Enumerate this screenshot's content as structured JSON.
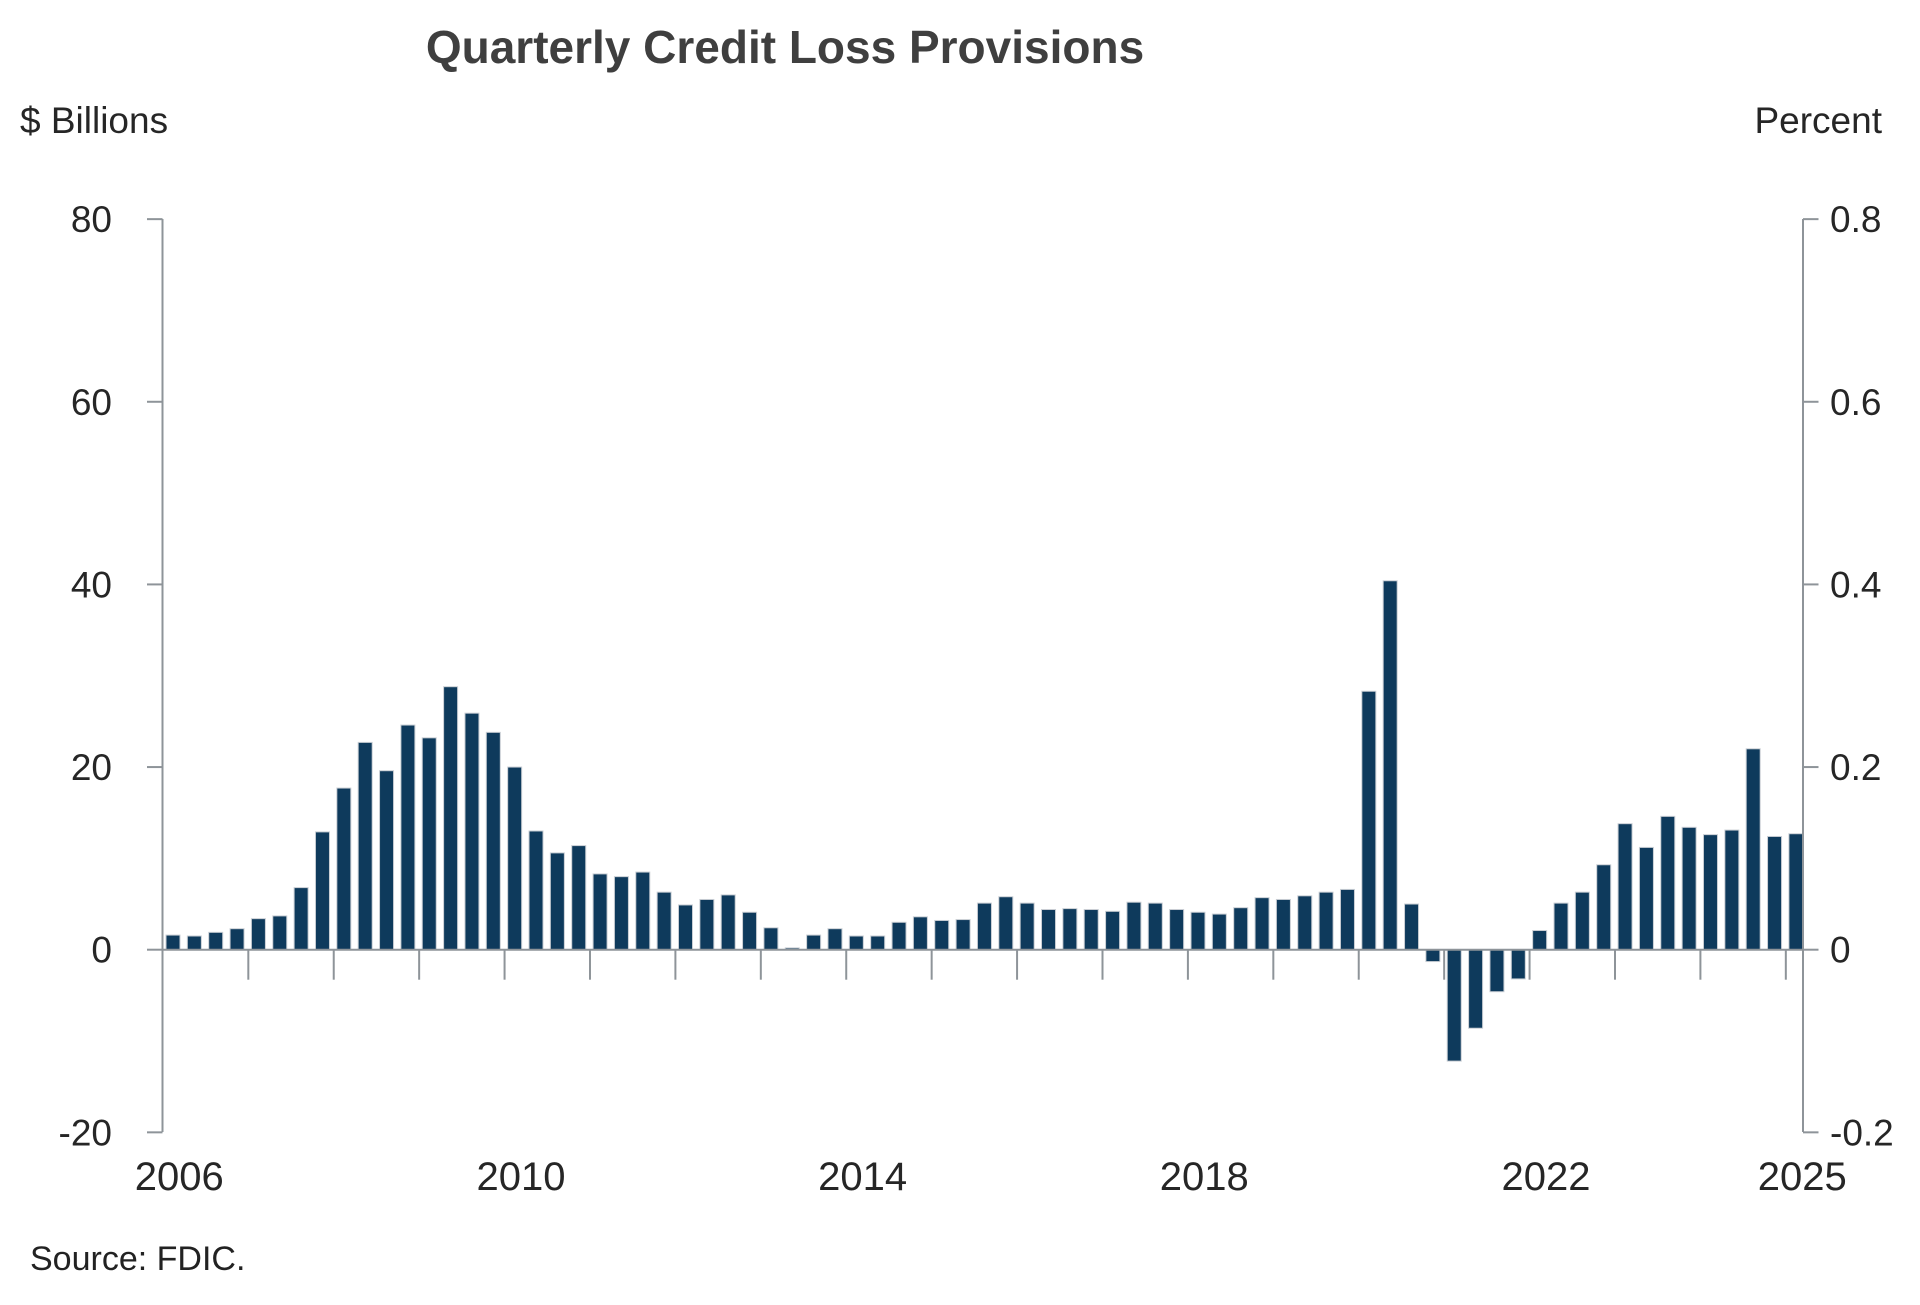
{
  "title": "Quarterly Credit Loss Provisions",
  "source": "Source: FDIC.",
  "left_axis": {
    "unit": "$ Billions",
    "tick_labels": [
      "80",
      "60",
      "40",
      "20",
      "0",
      "-20"
    ],
    "tick_values": [
      80,
      60,
      40,
      20,
      0,
      -20
    ]
  },
  "right_axis": {
    "unit": "Percent",
    "tick_labels": [
      "0.8",
      "0.6",
      "0.4",
      "0.2",
      "0",
      "-0.2"
    ],
    "tick_values": [
      0.8,
      0.6,
      0.4,
      0.2,
      0,
      -0.2
    ]
  },
  "x_axis": {
    "year_labels": [
      2006,
      2010,
      2014,
      2018,
      2022,
      2025
    ],
    "tick_years": [
      2007,
      2008,
      2009,
      2010,
      2011,
      2012,
      2013,
      2014,
      2015,
      2016,
      2017,
      2018,
      2019,
      2020,
      2021,
      2022,
      2023,
      2024,
      2025
    ]
  },
  "colors": {
    "bar_fill": "#0E3A5C",
    "bar_edge": "#C9CED4",
    "axis_line": "#8E9499",
    "text": "#262626",
    "title_text": "#3F3F3F"
  },
  "chart_data": {
    "type": "bar",
    "title": "Quarterly Credit Loss Provisions",
    "xlabel": "",
    "ylabel_left": "$ Billions",
    "ylabel_right": "Percent",
    "ylim_left": [
      -20,
      80
    ],
    "ylim_right": [
      -0.2,
      0.8
    ],
    "x_range": [
      "2006Q1",
      "2025Q1"
    ],
    "grid": false,
    "legend": "none",
    "note": "Right percent axis is aligned so 0.8 Percent corresponds to 80 $Billions",
    "categories": [
      "2006Q1",
      "2006Q2",
      "2006Q3",
      "2006Q4",
      "2007Q1",
      "2007Q2",
      "2007Q3",
      "2007Q4",
      "2008Q1",
      "2008Q2",
      "2008Q3",
      "2008Q4",
      "2009Q1",
      "2009Q2",
      "2009Q3",
      "2009Q4",
      "2010Q1",
      "2010Q2",
      "2010Q3",
      "2010Q4",
      "2011Q1",
      "2011Q2",
      "2011Q3",
      "2011Q4",
      "2012Q1",
      "2012Q2",
      "2012Q3",
      "2012Q4",
      "2013Q1",
      "2013Q2",
      "2013Q3",
      "2013Q4",
      "2014Q1",
      "2014Q2",
      "2014Q3",
      "2014Q4",
      "2015Q1",
      "2015Q2",
      "2015Q3",
      "2015Q4",
      "2016Q1",
      "2016Q2",
      "2016Q3",
      "2016Q4",
      "2017Q1",
      "2017Q2",
      "2017Q3",
      "2017Q4",
      "2018Q1",
      "2018Q2",
      "2018Q3",
      "2018Q4",
      "2019Q1",
      "2019Q2",
      "2019Q3",
      "2019Q4",
      "2020Q1",
      "2020Q2",
      "2020Q3",
      "2020Q4",
      "2021Q1",
      "2021Q2",
      "2021Q3",
      "2021Q4",
      "2022Q1",
      "2022Q2",
      "2022Q3",
      "2022Q4",
      "2023Q1",
      "2023Q2",
      "2023Q3",
      "2023Q4",
      "2024Q1",
      "2024Q2",
      "2024Q3",
      "2024Q4",
      "2025Q1"
    ],
    "values": [
      1.6,
      1.5,
      1.9,
      2.3,
      3.4,
      3.7,
      6.8,
      12.9,
      17.7,
      22.7,
      19.6,
      24.6,
      23.2,
      28.8,
      25.9,
      23.8,
      20.0,
      13.0,
      10.6,
      11.4,
      8.3,
      8.0,
      8.5,
      6.3,
      4.9,
      5.5,
      6.0,
      4.1,
      2.4,
      0.2,
      1.6,
      2.3,
      1.5,
      1.5,
      3.0,
      3.6,
      3.2,
      3.3,
      5.1,
      5.8,
      5.1,
      4.4,
      4.5,
      4.4,
      4.2,
      5.2,
      5.1,
      4.4,
      4.1,
      3.9,
      4.6,
      5.7,
      5.5,
      5.9,
      6.3,
      6.6,
      28.3,
      40.4,
      5.0,
      -1.3,
      -12.2,
      -8.6,
      -4.6,
      -3.2,
      2.1,
      5.1,
      6.3,
      9.3,
      13.8,
      11.2,
      14.6,
      13.4,
      12.6,
      13.1,
      22.0,
      12.4,
      12.7
    ]
  }
}
